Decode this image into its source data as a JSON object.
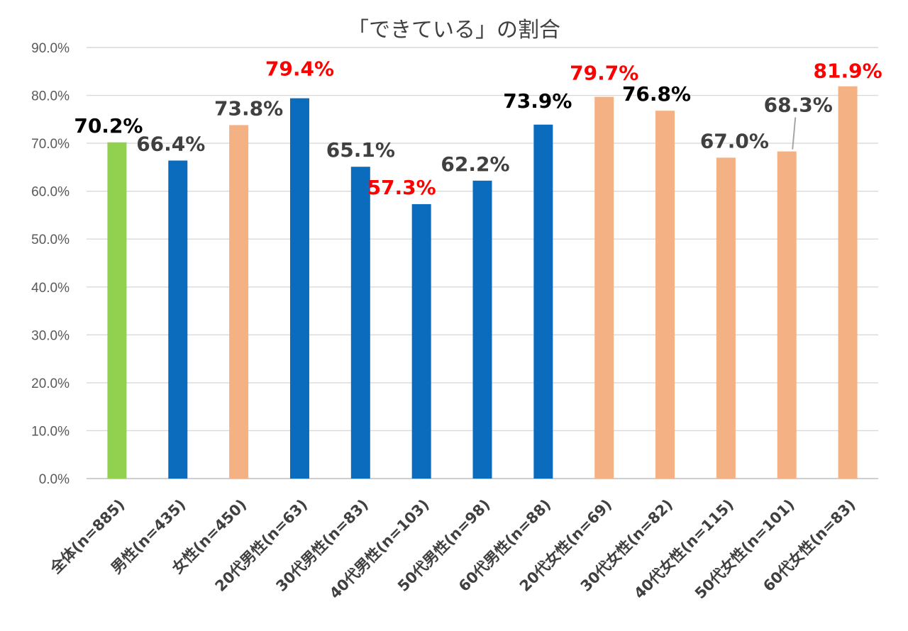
{
  "chart_data": {
    "type": "bar",
    "title": "「できている」の割合",
    "xlabel": "",
    "ylabel": "",
    "ylim": [
      0,
      90
    ],
    "yticks": [
      "0.0%",
      "10.0%",
      "20.0%",
      "30.0%",
      "40.0%",
      "50.0%",
      "60.0%",
      "70.0%",
      "80.0%",
      "90.0%"
    ],
    "grid": true,
    "legend": "none",
    "categories": [
      "全体(n=885)",
      "男性(n=435)",
      "女性(n=450)",
      "20代男性(n=63)",
      "30代男性(n=83)",
      "40代男性(n=103)",
      "50代男性(n=98)",
      "60代男性(n=88)",
      "20代女性(n=69)",
      "30代女性(n=82)",
      "40代女性(n=115)",
      "50代女性(n=101)",
      "60代女性(n=83)"
    ],
    "values": [
      70.2,
      66.4,
      73.8,
      79.4,
      65.1,
      57.3,
      62.2,
      73.9,
      79.7,
      76.8,
      67.0,
      68.3,
      81.9
    ],
    "data_labels": [
      "70.2%",
      "66.4%",
      "73.8%",
      "79.4%",
      "65.1%",
      "57.3%",
      "62.2%",
      "73.9%",
      "79.7%",
      "76.8%",
      "67.0%",
      "68.3%",
      "81.9%"
    ],
    "bar_colors": [
      "#92d050",
      "#0b6cbd",
      "#f4b183",
      "#0b6cbd",
      "#0b6cbd",
      "#0b6cbd",
      "#0b6cbd",
      "#0b6cbd",
      "#f4b183",
      "#f4b183",
      "#f4b183",
      "#f4b183",
      "#f4b183"
    ],
    "label_colors": [
      "#000000",
      "#404040",
      "#404040",
      "#ff0000",
      "#404040",
      "#ff0000",
      "#404040",
      "#000000",
      "#ff0000",
      "#000000",
      "#404040",
      "#404040",
      "#ff0000"
    ]
  }
}
